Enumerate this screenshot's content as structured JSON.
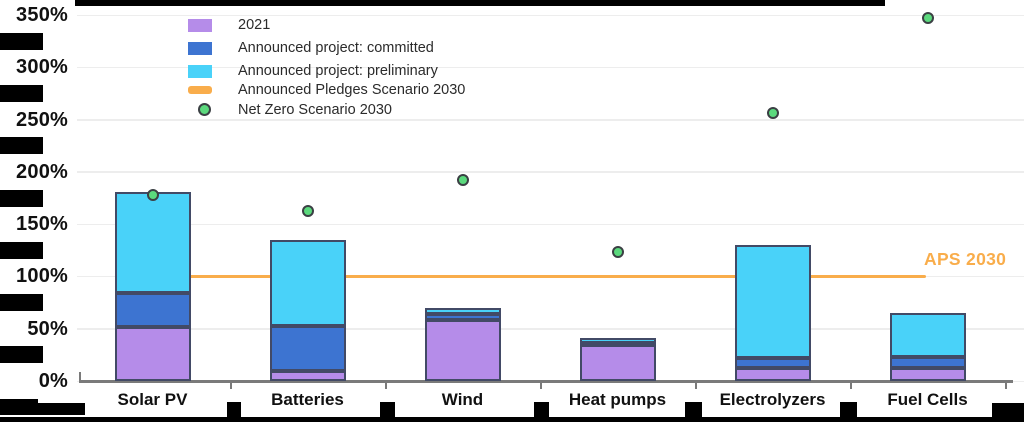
{
  "chart_data": {
    "type": "bar",
    "stacked": true,
    "title": "",
    "categories": [
      "Solar PV",
      "Batteries",
      "Wind",
      "Heat pumps",
      "Electrolyzers",
      "Fuel Cells"
    ],
    "series": [
      {
        "name": "2021",
        "color": "#b58ce9",
        "values": [
          52,
          10,
          58,
          35,
          12,
          12
        ]
      },
      {
        "name": "Announced project: committed",
        "color": "#3d74d1",
        "values": [
          32,
          43,
          6,
          1,
          10,
          11
        ]
      },
      {
        "name": "Announced project: preliminary",
        "color": "#49d2f9",
        "values": [
          97,
          82,
          6,
          5,
          108,
          42
        ]
      }
    ],
    "stack_totals_pct": [
      181,
      135,
      70,
      41,
      130,
      65
    ],
    "reference_line": {
      "name": "Announced Pledges Scenario 2030",
      "label": "APS 2030",
      "value": 100,
      "color": "#f9ad4b"
    },
    "scatter_series": {
      "name": "Net Zero Scenario 2030",
      "color": "#5bd97d",
      "values": [
        178,
        163,
        192,
        123,
        256,
        347
      ]
    },
    "ylim": [
      0,
      350
    ],
    "ytick_values": [
      0,
      50,
      100,
      150,
      200,
      250,
      300,
      350
    ],
    "ytick_labels": [
      "0%",
      "50%",
      "100%",
      "150%",
      "200%",
      "250%",
      "300%",
      "350%"
    ],
    "grid": true,
    "legend_position": "top-left"
  },
  "legend": {
    "items": [
      {
        "label": "2021",
        "swatch": "rect",
        "color": "#b58ce9"
      },
      {
        "label": "Announced project: committed",
        "swatch": "rect",
        "color": "#3d74d1"
      },
      {
        "label": "Announced project: preliminary",
        "swatch": "rect",
        "color": "#49d2f9"
      },
      {
        "label": "Announced Pledges Scenario 2030",
        "swatch": "line",
        "color": "#f9ad4b"
      },
      {
        "label": "Net Zero Scenario 2030",
        "swatch": "circle",
        "color": "#5bd97d"
      }
    ]
  },
  "colors": {
    "axis": "#7a7a7a",
    "grid": "#ededed",
    "text": "#111111",
    "bar_border": "#424a66",
    "marker_border": "#3b4044",
    "aps_label": "#f9ad4b",
    "redaction": "#000000"
  }
}
